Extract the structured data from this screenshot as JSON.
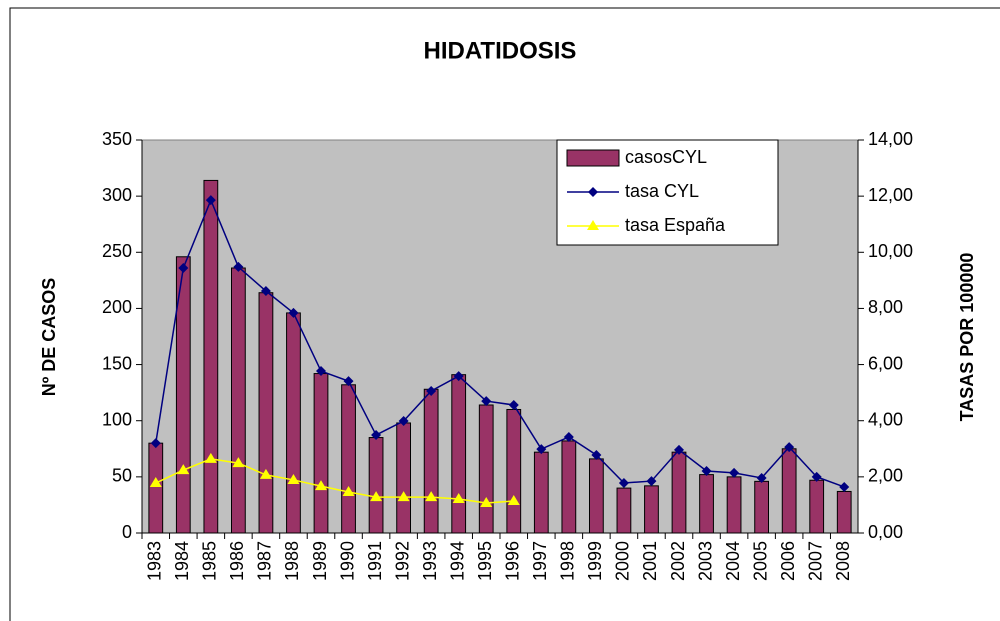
{
  "chart_data": {
    "type": "bar",
    "title": "HIDATIDOSIS",
    "y_label": "Nº DE CASOS",
    "y2_label": "TASAS POR 100000",
    "categories": [
      "1983",
      "1984",
      "1985",
      "1986",
      "1987",
      "1988",
      "1989",
      "1990",
      "1991",
      "1992",
      "1993",
      "1994",
      "1995",
      "1996",
      "1997",
      "1998",
      "1999",
      "2000",
      "2001",
      "2002",
      "2003",
      "2004",
      "2005",
      "2006",
      "2007",
      "2008"
    ],
    "series": [
      {
        "name": "casosCYL",
        "type": "bar",
        "color": "#993366",
        "values": [
          80,
          246,
          314,
          236,
          214,
          196,
          142,
          132,
          85,
          98,
          128,
          141,
          114,
          110,
          72,
          82,
          66,
          40,
          42,
          72,
          52,
          50,
          46,
          75,
          47,
          37
        ]
      },
      {
        "name": "tasa CYL",
        "type": "line",
        "marker": "diamond",
        "axis": "y2",
        "color": "#000080",
        "values": [
          3.2,
          9.44,
          11.86,
          9.48,
          8.62,
          7.84,
          5.77,
          5.41,
          3.49,
          3.99,
          5.06,
          5.59,
          4.7,
          4.56,
          2.99,
          3.42,
          2.78,
          1.78,
          1.85,
          2.96,
          2.21,
          2.14,
          1.96,
          3.06,
          2.0,
          1.64
        ]
      },
      {
        "name": "tasa España",
        "type": "line",
        "marker": "triangle",
        "axis": "y2",
        "color": "#ffff00",
        "values": [
          1.78,
          2.24,
          2.64,
          2.49,
          2.07,
          1.89,
          1.67,
          1.46,
          1.28,
          1.28,
          1.28,
          1.21,
          1.07,
          1.14,
          null,
          null,
          null,
          null,
          null,
          null,
          null,
          null,
          null,
          null,
          null,
          null
        ]
      }
    ],
    "ylim": [
      0,
      350
    ],
    "yticks": [
      0,
      50,
      100,
      150,
      200,
      250,
      300,
      350
    ],
    "y2lim": [
      0,
      14
    ],
    "y2ticks": [
      {
        "value": 0,
        "label": "0,00"
      },
      {
        "value": 2,
        "label": "2,00"
      },
      {
        "value": 4,
        "label": "4,00"
      },
      {
        "value": 6,
        "label": "6,00"
      },
      {
        "value": 8,
        "label": "8,00"
      },
      {
        "value": 10,
        "label": "10,00"
      },
      {
        "value": 12,
        "label": "12,00"
      },
      {
        "value": 14,
        "label": "14,00"
      }
    ],
    "plot_background": "#c0c0c0",
    "legend": "top-right"
  }
}
